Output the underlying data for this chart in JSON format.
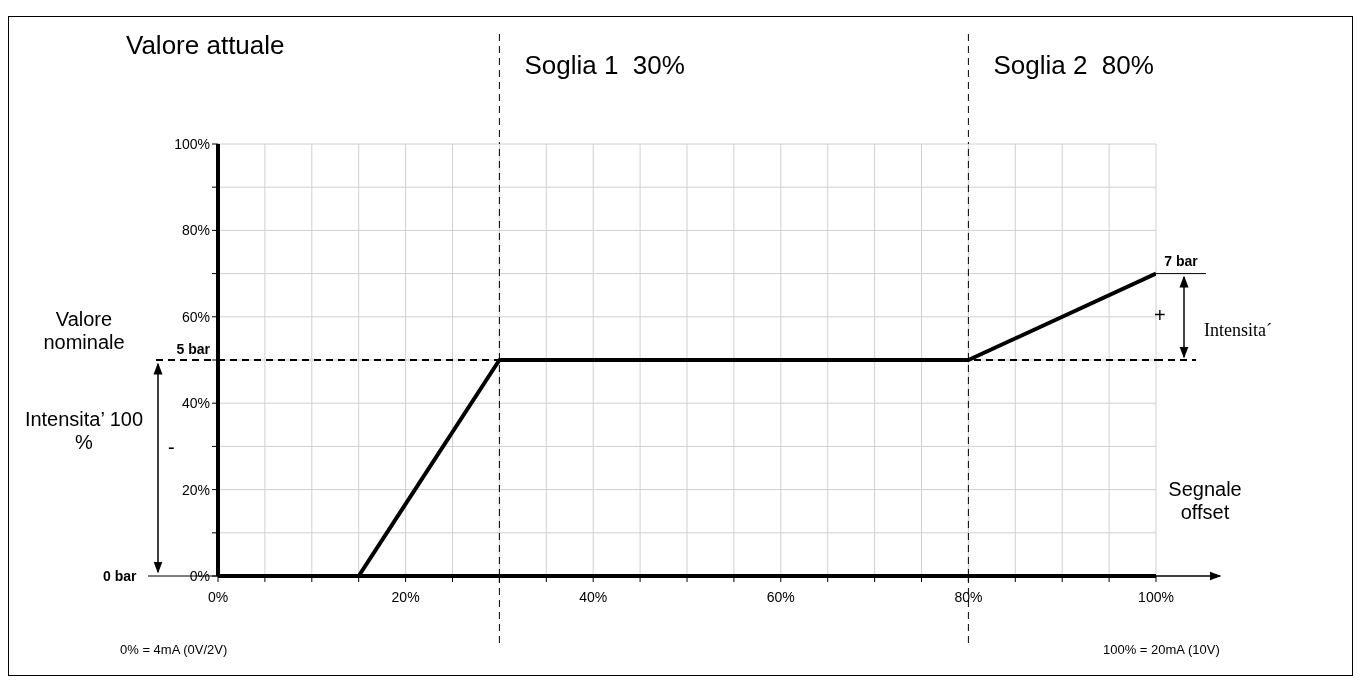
{
  "chart_data": {
    "type": "line",
    "ylabel": "Valore attuale",
    "xlabel": "Segnale offset",
    "x": [
      0,
      15,
      30,
      80,
      100
    ],
    "series": [
      {
        "color": "#000000",
        "values": [
          0,
          0,
          50,
          50,
          70
        ]
      }
    ],
    "xlim": [
      0,
      100
    ],
    "xticks": [
      {
        "value": 0,
        "label": "0%"
      },
      {
        "value": 5,
        "label": null
      },
      {
        "value": 10,
        "label": null
      },
      {
        "value": 15,
        "label": null
      },
      {
        "value": 20,
        "label": "20%"
      },
      {
        "value": 25,
        "label": null
      },
      {
        "value": 30,
        "label": null
      },
      {
        "value": 35,
        "label": null
      },
      {
        "value": 40,
        "label": "40%"
      },
      {
        "value": 45,
        "label": null
      },
      {
        "value": 50,
        "label": null
      },
      {
        "value": 55,
        "label": null
      },
      {
        "value": 60,
        "label": "60%"
      },
      {
        "value": 65,
        "label": null
      },
      {
        "value": 70,
        "label": null
      },
      {
        "value": 75,
        "label": null
      },
      {
        "value": 80,
        "label": "80%"
      },
      {
        "value": 85,
        "label": null
      },
      {
        "value": 90,
        "label": null
      },
      {
        "value": 95,
        "label": null
      },
      {
        "value": 100,
        "label": "100%"
      }
    ],
    "ylim": [
      0,
      100
    ],
    "yticks": [
      {
        "value": 0,
        "label": "0%"
      },
      {
        "value": 10,
        "label": null
      },
      {
        "value": 20,
        "label": "20%"
      },
      {
        "value": 30,
        "label": null
      },
      {
        "value": 40,
        "label": "40%"
      },
      {
        "value": 50,
        "label": null
      },
      {
        "value": 60,
        "label": "60%"
      },
      {
        "value": 70,
        "label": null
      },
      {
        "value": 80,
        "label": "80%"
      },
      {
        "value": 90,
        "label": null
      },
      {
        "value": 100,
        "label": "100%"
      }
    ],
    "grid": true,
    "line_style": "solid",
    "ref_lines": [
      {
        "axis": "x",
        "value": 30,
        "label": "Soglia 1  30%",
        "color": "#000000",
        "line_style": "dashed"
      },
      {
        "axis": "x",
        "value": 80,
        "label": "Soglia 2  80%",
        "color": "#000000",
        "line_style": "dashed"
      },
      {
        "axis": "y",
        "value": 50,
        "label": "5 bar",
        "color": "#000000",
        "line_style": "dashed"
      }
    ],
    "annotations": [
      "Valore nominale",
      "Intensita’ 100 %",
      "-",
      "+",
      "Intensita´",
      "0% = 4mA (0V/2V)",
      "100% = 20mA (10V)",
      "0 bar",
      {
        "text": "7 bar",
        "x": 100,
        "y": 70
      }
    ]
  }
}
